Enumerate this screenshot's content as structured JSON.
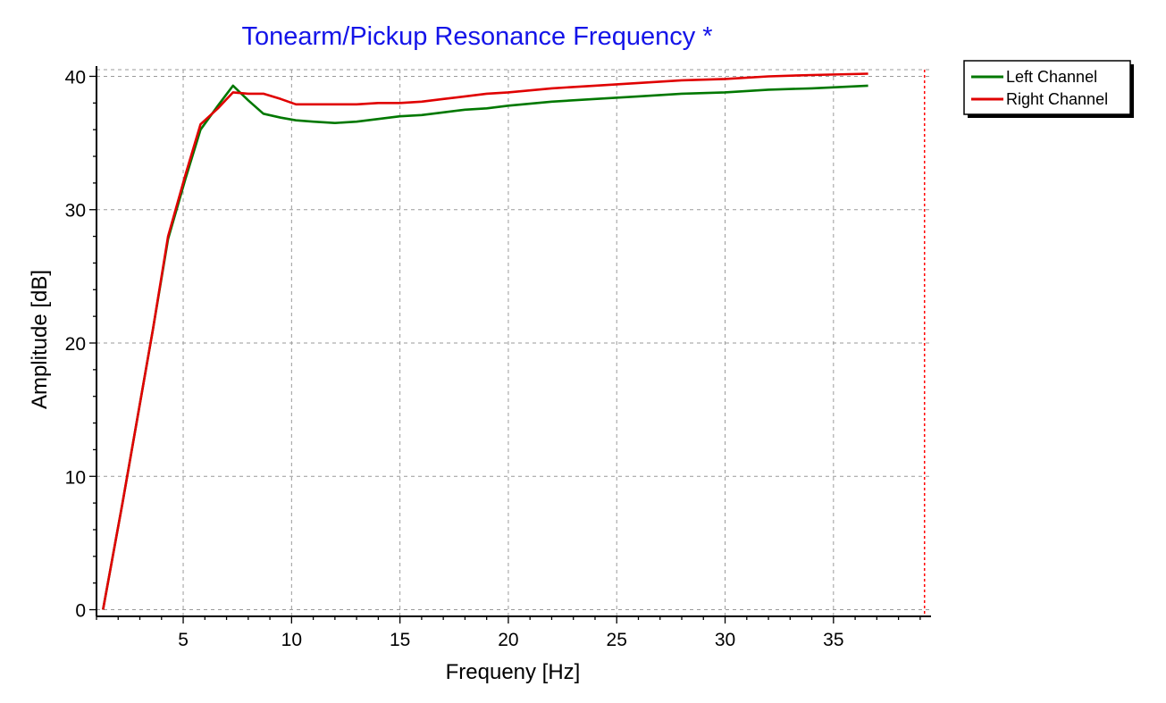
{
  "chart_data": {
    "type": "line",
    "title": "Tonearm/Pickup Resonance Frequency *",
    "xlabel": "Frequeny [Hz]",
    "ylabel": "Amplitude [dB]",
    "xlim": [
      1.0,
      39.5
    ],
    "ylim": [
      -0.5,
      40.5
    ],
    "xticks": [
      5,
      10,
      15,
      20,
      25,
      30,
      35
    ],
    "yticks": [
      0,
      10,
      20,
      30,
      40
    ],
    "grid": true,
    "grid_style": "dashed",
    "legend_position": "top-right-outside",
    "marker_line": {
      "x": 39.2,
      "color": "#ff0000",
      "style": "dashed"
    },
    "series": [
      {
        "name": "Left Channel",
        "color": "#007800",
        "x": [
          1.3,
          2.2,
          2.9,
          3.6,
          4.3,
          5.1,
          5.8,
          6.6,
          7.3,
          8.0,
          8.7,
          9.5,
          10.2,
          11.0,
          12.0,
          13.0,
          14.0,
          15.0,
          16.0,
          17.0,
          18.0,
          19.0,
          20.0,
          22.0,
          24.0,
          26.0,
          28.0,
          30.0,
          32.0,
          34.0,
          36.6
        ],
        "values": [
          0.0,
          8.0,
          14.5,
          21.0,
          27.8,
          32.3,
          36.0,
          37.8,
          39.3,
          38.2,
          37.2,
          36.9,
          36.7,
          36.6,
          36.5,
          36.6,
          36.8,
          37.0,
          37.1,
          37.3,
          37.5,
          37.6,
          37.8,
          38.1,
          38.3,
          38.5,
          38.7,
          38.8,
          39.0,
          39.1,
          39.3
        ]
      },
      {
        "name": "Right Channel",
        "color": "#e00000",
        "x": [
          1.3,
          2.2,
          2.9,
          3.6,
          4.3,
          5.1,
          5.8,
          6.6,
          7.3,
          8.0,
          8.7,
          9.5,
          10.2,
          11.0,
          12.0,
          13.0,
          14.0,
          15.0,
          16.0,
          17.0,
          18.0,
          19.0,
          20.0,
          22.0,
          24.0,
          26.0,
          28.0,
          30.0,
          32.0,
          34.0,
          36.6
        ],
        "values": [
          0.0,
          8.0,
          14.5,
          21.0,
          28.0,
          32.6,
          36.4,
          37.6,
          38.8,
          38.7,
          38.7,
          38.3,
          37.9,
          37.9,
          37.9,
          37.9,
          38.0,
          38.0,
          38.1,
          38.3,
          38.5,
          38.7,
          38.8,
          39.1,
          39.3,
          39.5,
          39.7,
          39.8,
          40.0,
          40.1,
          40.2
        ]
      }
    ]
  }
}
